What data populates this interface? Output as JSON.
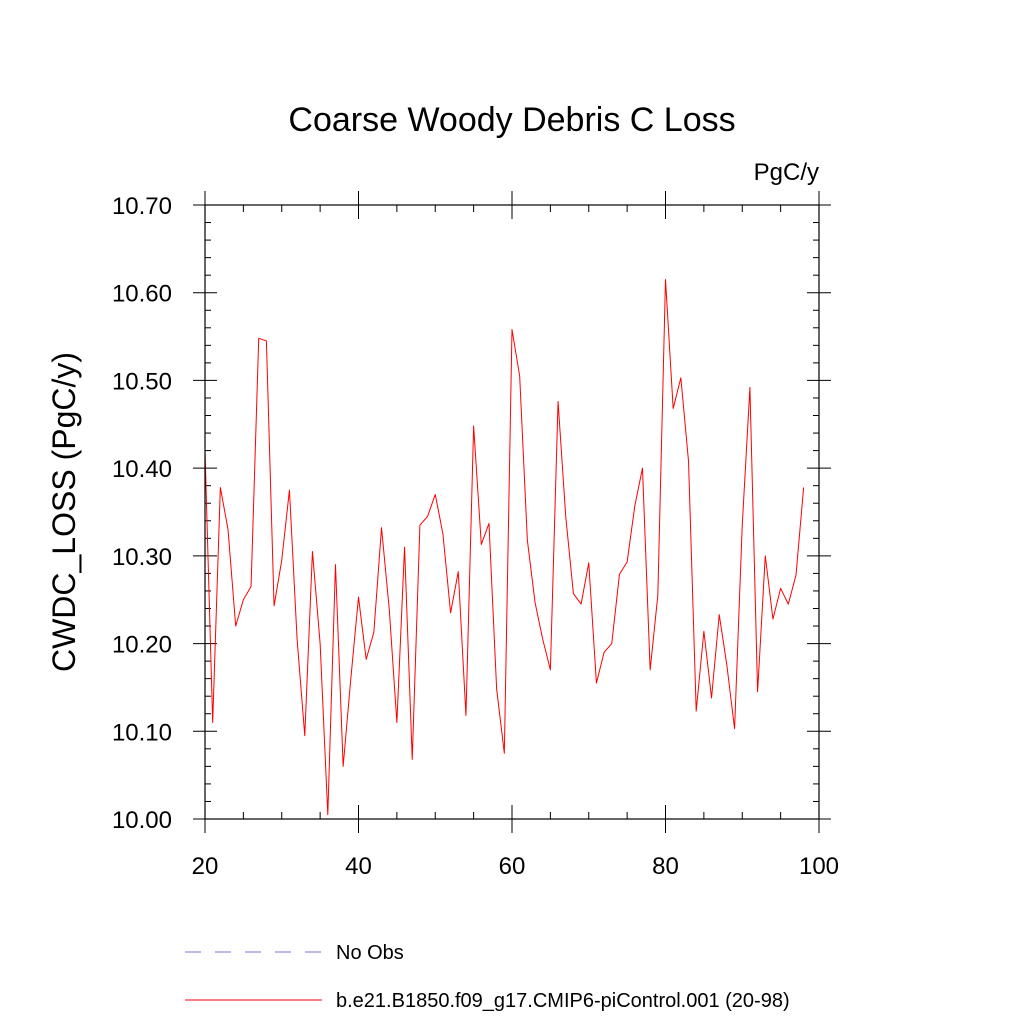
{
  "chart_data": {
    "type": "line",
    "title": "Coarse Woody Debris C Loss",
    "units_label": "PgC/y",
    "ylabel": "CWDC_LOSS  (PgC/y)",
    "xlabel": "",
    "xlim": [
      20,
      100
    ],
    "ylim": [
      10.0,
      10.7
    ],
    "x_ticks": [
      20,
      40,
      60,
      80,
      100
    ],
    "x_tick_labels": [
      "20",
      "40",
      "60",
      "80",
      "100"
    ],
    "y_ticks": [
      10.0,
      10.1,
      10.2,
      10.3,
      10.4,
      10.5,
      10.6,
      10.7
    ],
    "y_tick_labels": [
      "10.00",
      "10.10",
      "10.20",
      "10.30",
      "10.40",
      "10.50",
      "10.60",
      "10.70"
    ],
    "grid": false,
    "legend_position": "bottom",
    "series": [
      {
        "name": "b.e21.B1850.f09_g17.CMIP6-piControl.001 (20-98)",
        "color": "#ff0000",
        "style": "solid",
        "x": [
          20,
          21,
          22,
          23,
          24,
          25,
          26,
          27,
          28,
          29,
          30,
          31,
          32,
          33,
          34,
          35,
          36,
          37,
          38,
          39,
          40,
          41,
          42,
          43,
          44,
          45,
          46,
          47,
          48,
          49,
          50,
          51,
          52,
          53,
          54,
          55,
          56,
          57,
          58,
          59,
          60,
          61,
          62,
          63,
          64,
          65,
          66,
          67,
          68,
          69,
          70,
          71,
          72,
          73,
          74,
          75,
          76,
          77,
          78,
          79,
          80,
          81,
          82,
          83,
          84,
          85,
          86,
          87,
          88,
          89,
          90,
          91,
          92,
          93,
          94,
          95,
          96,
          97,
          98
        ],
        "y": [
          10.42,
          10.11,
          10.378,
          10.33,
          10.22,
          10.25,
          10.265,
          10.548,
          10.545,
          10.243,
          10.295,
          10.375,
          10.205,
          10.095,
          10.305,
          10.2,
          10.005,
          10.29,
          10.06,
          10.16,
          10.253,
          10.182,
          10.213,
          10.332,
          10.24,
          10.11,
          10.31,
          10.068,
          10.335,
          10.345,
          10.37,
          10.325,
          10.235,
          10.282,
          10.118,
          10.448,
          10.313,
          10.337,
          10.148,
          10.075,
          10.558,
          10.505,
          10.318,
          10.247,
          10.205,
          10.17,
          10.476,
          10.345,
          10.257,
          10.245,
          10.292,
          10.155,
          10.19,
          10.2,
          10.279,
          10.293,
          10.357,
          10.4,
          10.17,
          10.255,
          10.615,
          10.468,
          10.503,
          10.408,
          10.123,
          10.214,
          10.138,
          10.233,
          10.175,
          10.103,
          10.335,
          10.492,
          10.145,
          10.3,
          10.228,
          10.263,
          10.245,
          10.278,
          10.378
        ]
      },
      {
        "name": "No Obs",
        "color": "#7f6fd6",
        "style": "dashed",
        "x": [],
        "y": []
      }
    ]
  }
}
